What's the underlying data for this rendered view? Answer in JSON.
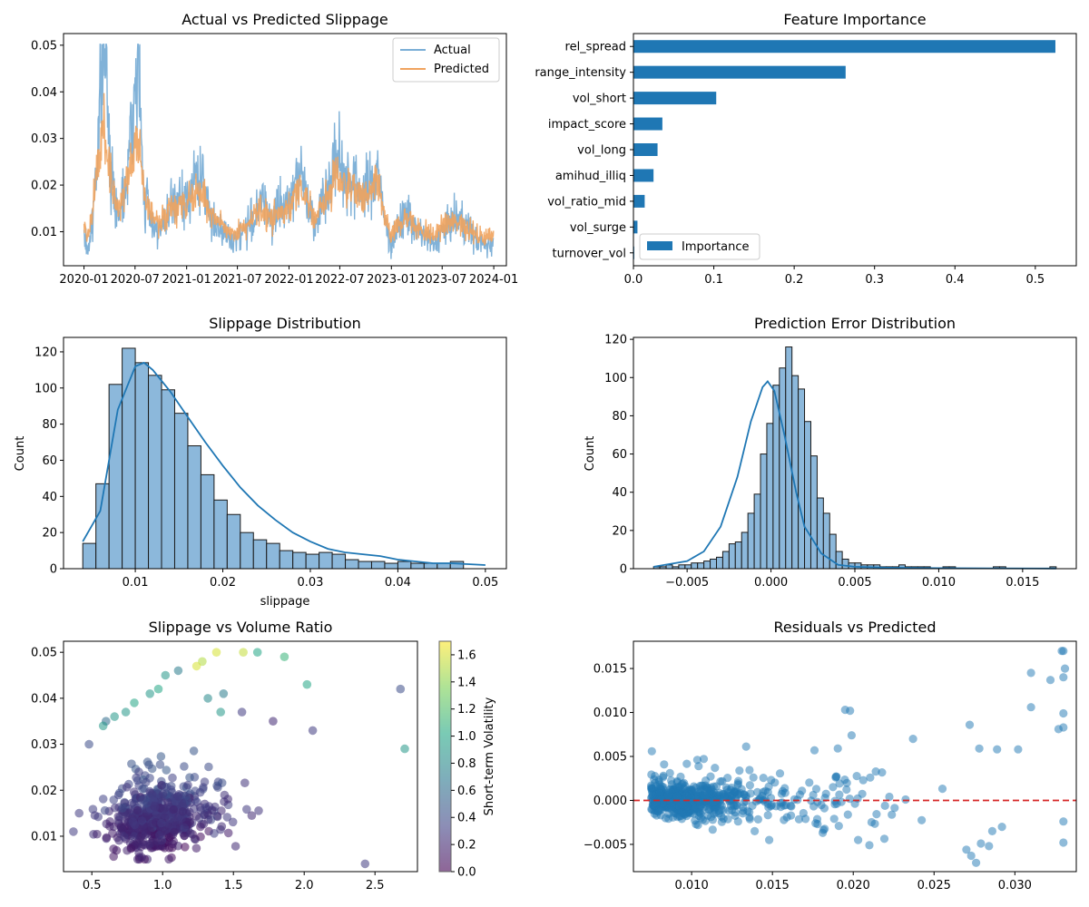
{
  "charts": {
    "c1": {
      "type": "line",
      "title": "Actual vs Predicted Slippage",
      "x_ticks": [
        "2020-01",
        "2020-07",
        "2021-01",
        "2021-07",
        "2022-01",
        "2022-07",
        "2023-01",
        "2023-07",
        "2024-01"
      ],
      "y_ticks": [
        "0.01",
        "0.02",
        "0.03",
        "0.04",
        "0.05"
      ],
      "ylim": [
        0.0027,
        0.0525
      ],
      "xlim": [
        "2019-10-20",
        "2024-02-15"
      ],
      "legend_position": "upper right",
      "series": [
        {
          "name": "Actual",
          "color": "#7aaed6"
        },
        {
          "name": "Predicted",
          "color": "#f0a35e"
        }
      ],
      "points_actual": [
        [
          "2020-01-01",
          0.009
        ],
        [
          "2020-01-15",
          0.006
        ],
        [
          "2020-02-01",
          0.012
        ],
        [
          "2020-02-15",
          0.026
        ],
        [
          "2020-03-01",
          0.044
        ],
        [
          "2020-03-10",
          0.05
        ],
        [
          "2020-03-15",
          0.05
        ],
        [
          "2020-03-20",
          0.043
        ],
        [
          "2020-04-01",
          0.029
        ],
        [
          "2020-04-15",
          0.018
        ],
        [
          "2020-05-01",
          0.014
        ],
        [
          "2020-05-15",
          0.017
        ],
        [
          "2020-06-01",
          0.022
        ],
        [
          "2020-06-15",
          0.03
        ],
        [
          "2020-07-01",
          0.038
        ],
        [
          "2020-07-10",
          0.05
        ],
        [
          "2020-07-20",
          0.034
        ],
        [
          "2020-08-01",
          0.018
        ],
        [
          "2020-08-15",
          0.016
        ],
        [
          "2020-09-01",
          0.012
        ],
        [
          "2020-10-01",
          0.01
        ],
        [
          "2020-11-01",
          0.014
        ],
        [
          "2020-12-01",
          0.017
        ],
        [
          "2021-01-01",
          0.016
        ],
        [
          "2021-02-01",
          0.022
        ],
        [
          "2021-03-01",
          0.02
        ],
        [
          "2021-04-01",
          0.013
        ],
        [
          "2021-05-01",
          0.011
        ],
        [
          "2021-06-01",
          0.008
        ],
        [
          "2021-07-01",
          0.009
        ],
        [
          "2021-08-01",
          0.011
        ],
        [
          "2021-09-01",
          0.013
        ],
        [
          "2021-10-01",
          0.017
        ],
        [
          "2021-11-01",
          0.013
        ],
        [
          "2021-12-01",
          0.015
        ],
        [
          "2022-01-01",
          0.016
        ],
        [
          "2022-02-01",
          0.024
        ],
        [
          "2022-03-01",
          0.019
        ],
        [
          "2022-04-01",
          0.012
        ],
        [
          "2022-05-01",
          0.017
        ],
        [
          "2022-06-01",
          0.021
        ],
        [
          "2022-06-15",
          0.027
        ],
        [
          "2022-07-01",
          0.024
        ],
        [
          "2022-08-01",
          0.022
        ],
        [
          "2022-09-01",
          0.02
        ],
        [
          "2022-10-01",
          0.018
        ],
        [
          "2022-11-01",
          0.021
        ],
        [
          "2022-11-15",
          0.025
        ],
        [
          "2022-12-01",
          0.014
        ],
        [
          "2023-01-01",
          0.007
        ],
        [
          "2023-02-01",
          0.012
        ],
        [
          "2023-03-01",
          0.014
        ],
        [
          "2023-04-01",
          0.01
        ],
        [
          "2023-05-01",
          0.009
        ],
        [
          "2023-06-01",
          0.007
        ],
        [
          "2023-07-01",
          0.01
        ],
        [
          "2023-08-01",
          0.012
        ],
        [
          "2023-09-01",
          0.013
        ],
        [
          "2023-10-01",
          0.011
        ],
        [
          "2023-11-01",
          0.008
        ],
        [
          "2023-12-01",
          0.007
        ],
        [
          "2024-01-01",
          0.008
        ]
      ],
      "points_predicted": [
        [
          "2020-01-01",
          0.011
        ],
        [
          "2020-01-15",
          0.009
        ],
        [
          "2020-02-01",
          0.014
        ],
        [
          "2020-02-15",
          0.022
        ],
        [
          "2020-03-01",
          0.03
        ],
        [
          "2020-03-10",
          0.032
        ],
        [
          "2020-03-15",
          0.031
        ],
        [
          "2020-03-20",
          0.029
        ],
        [
          "2020-04-01",
          0.024
        ],
        [
          "2020-04-15",
          0.017
        ],
        [
          "2020-05-01",
          0.015
        ],
        [
          "2020-05-15",
          0.016
        ],
        [
          "2020-06-01",
          0.02
        ],
        [
          "2020-06-15",
          0.024
        ],
        [
          "2020-07-01",
          0.028
        ],
        [
          "2020-07-10",
          0.03
        ],
        [
          "2020-07-20",
          0.026
        ],
        [
          "2020-08-01",
          0.018
        ],
        [
          "2020-08-15",
          0.016
        ],
        [
          "2020-09-01",
          0.013
        ],
        [
          "2020-10-01",
          0.012
        ],
        [
          "2020-11-01",
          0.014
        ],
        [
          "2020-12-01",
          0.016
        ],
        [
          "2021-01-01",
          0.015
        ],
        [
          "2021-02-01",
          0.019
        ],
        [
          "2021-03-01",
          0.018
        ],
        [
          "2021-04-01",
          0.013
        ],
        [
          "2021-05-01",
          0.012
        ],
        [
          "2021-06-01",
          0.01
        ],
        [
          "2021-07-01",
          0.01
        ],
        [
          "2021-08-01",
          0.011
        ],
        [
          "2021-09-01",
          0.013
        ],
        [
          "2021-10-01",
          0.015
        ],
        [
          "2021-11-01",
          0.013
        ],
        [
          "2021-12-01",
          0.014
        ],
        [
          "2022-01-01",
          0.015
        ],
        [
          "2022-02-01",
          0.02
        ],
        [
          "2022-03-01",
          0.017
        ],
        [
          "2022-04-01",
          0.013
        ],
        [
          "2022-05-01",
          0.016
        ],
        [
          "2022-06-01",
          0.019
        ],
        [
          "2022-06-15",
          0.022
        ],
        [
          "2022-07-01",
          0.021
        ],
        [
          "2022-08-01",
          0.02
        ],
        [
          "2022-09-01",
          0.018
        ],
        [
          "2022-10-01",
          0.017
        ],
        [
          "2022-11-01",
          0.019
        ],
        [
          "2022-11-15",
          0.021
        ],
        [
          "2022-12-01",
          0.014
        ],
        [
          "2023-01-01",
          0.009
        ],
        [
          "2023-02-01",
          0.012
        ],
        [
          "2023-03-01",
          0.013
        ],
        [
          "2023-04-01",
          0.011
        ],
        [
          "2023-05-01",
          0.01
        ],
        [
          "2023-06-01",
          0.009
        ],
        [
          "2023-07-01",
          0.011
        ],
        [
          "2023-08-01",
          0.012
        ],
        [
          "2023-09-01",
          0.012
        ],
        [
          "2023-10-01",
          0.011
        ],
        [
          "2023-11-01",
          0.009
        ],
        [
          "2023-12-01",
          0.009
        ],
        [
          "2024-01-01",
          0.009
        ]
      ]
    },
    "c2": {
      "type": "bar",
      "orientation": "horizontal",
      "title": "Feature Importance",
      "categories": [
        "rel_spread",
        "range_intensity",
        "vol_short",
        "impact_score",
        "vol_long",
        "amihud_illiq",
        "vol_ratio_mid",
        "vol_surge",
        "turnover_vol"
      ],
      "values": [
        0.525,
        0.264,
        0.103,
        0.036,
        0.03,
        0.025,
        0.014,
        0.005,
        0.001
      ],
      "series_name": "Importance",
      "color": "#1f77b4",
      "x_ticks": [
        "0.0",
        "0.1",
        "0.2",
        "0.3",
        "0.4",
        "0.5"
      ],
      "xlim": [
        0,
        0.551
      ],
      "legend_position": "lower left"
    },
    "c3": {
      "type": "bar",
      "subtype": "histogram",
      "title": "Slippage Distribution",
      "xlabel": "slippage",
      "ylabel": "Count",
      "bin_start": 0.004,
      "bin_width": 0.0015,
      "counts": [
        14,
        47,
        102,
        122,
        114,
        107,
        99,
        86,
        68,
        52,
        38,
        30,
        20,
        16,
        14,
        10,
        9,
        8,
        9,
        8,
        5,
        4,
        4,
        3,
        4,
        3,
        3,
        3,
        4
      ],
      "kde": [
        [
          0.004,
          15
        ],
        [
          0.006,
          32
        ],
        [
          0.008,
          88
        ],
        [
          0.01,
          112
        ],
        [
          0.011,
          114
        ],
        [
          0.012,
          110
        ],
        [
          0.014,
          98
        ],
        [
          0.016,
          84
        ],
        [
          0.018,
          70
        ],
        [
          0.02,
          57
        ],
        [
          0.022,
          45
        ],
        [
          0.024,
          35
        ],
        [
          0.026,
          27
        ],
        [
          0.028,
          20
        ],
        [
          0.03,
          15
        ],
        [
          0.032,
          11
        ],
        [
          0.034,
          9
        ],
        [
          0.036,
          8
        ],
        [
          0.038,
          7
        ],
        [
          0.04,
          5
        ],
        [
          0.042,
          4
        ],
        [
          0.044,
          3
        ],
        [
          0.046,
          3
        ],
        [
          0.048,
          2.5
        ],
        [
          0.05,
          2
        ]
      ],
      "x_ticks": [
        "0.01",
        "0.02",
        "0.03",
        "0.04",
        "0.05"
      ],
      "y_ticks": [
        "0",
        "20",
        "40",
        "60",
        "80",
        "100",
        "120"
      ],
      "xlim": [
        0.0018,
        0.0524
      ],
      "ylim": [
        0,
        128
      ]
    },
    "c4": {
      "type": "bar",
      "subtype": "histogram",
      "title": "Prediction Error Distribution",
      "ylabel": "Count",
      "bin_start": -0.007,
      "bin_width": 0.000375,
      "counts": [
        1,
        1,
        2,
        1,
        2,
        2,
        3,
        3,
        4,
        5,
        6,
        9,
        13,
        14,
        19,
        29,
        39,
        60,
        76,
        96,
        105,
        116,
        101,
        94,
        77,
        59,
        37,
        29,
        18,
        9,
        5,
        3,
        3,
        2,
        2,
        2,
        1,
        1,
        1,
        2,
        1,
        1,
        1,
        1,
        0,
        0,
        1,
        1,
        0,
        0,
        0,
        0,
        0,
        0,
        1,
        1,
        0,
        0,
        0,
        0,
        0,
        0,
        0,
        1
      ],
      "kde": [
        [
          -0.007,
          1
        ],
        [
          -0.005,
          4
        ],
        [
          -0.004,
          9
        ],
        [
          -0.003,
          22
        ],
        [
          -0.002,
          48
        ],
        [
          -0.0012,
          77
        ],
        [
          -0.0005,
          95
        ],
        [
          -0.0002,
          98
        ],
        [
          0.0002,
          93
        ],
        [
          0.0008,
          70
        ],
        [
          0.0015,
          40
        ],
        [
          0.002,
          22
        ],
        [
          0.003,
          8
        ],
        [
          0.004,
          2
        ],
        [
          0.005,
          1
        ],
        [
          0.007,
          0.5
        ],
        [
          0.01,
          0.3
        ],
        [
          0.013,
          0.2
        ],
        [
          0.017,
          0.1
        ]
      ],
      "x_ticks": [
        "−0.005",
        "0.000",
        "0.005",
        "0.010",
        "0.015"
      ],
      "y_ticks": [
        "0",
        "20",
        "40",
        "60",
        "80",
        "100",
        "120"
      ],
      "xlim": [
        -0.0082,
        0.0182
      ],
      "ylim": [
        0,
        121
      ]
    },
    "c5": {
      "type": "scatter",
      "title": "Slippage vs Volume Ratio",
      "x_ticks": [
        "0.5",
        "1.0",
        "1.5",
        "2.0",
        "2.5"
      ],
      "y_ticks": [
        "0.01",
        "0.02",
        "0.03",
        "0.04",
        "0.05"
      ],
      "xlim": [
        0.3,
        2.8
      ],
      "ylim": [
        0.0023,
        0.0524
      ],
      "colorbar_label": "Short-term Volatility",
      "colorbar_ticks": [
        "0.0",
        "0.2",
        "0.4",
        "0.6",
        "0.8",
        "1.0",
        "1.2",
        "1.4",
        "1.6"
      ],
      "colorbar_range": [
        0,
        1.7
      ],
      "highlights": [
        [
          1.38,
          0.05,
          1.6
        ],
        [
          1.57,
          0.05,
          1.55
        ],
        [
          1.67,
          0.05,
          1.0
        ],
        [
          1.28,
          0.048,
          1.5
        ],
        [
          1.24,
          0.047,
          1.6
        ],
        [
          1.02,
          0.045,
          0.9
        ],
        [
          1.11,
          0.046,
          0.7
        ],
        [
          1.86,
          0.049,
          1.1
        ],
        [
          2.02,
          0.043,
          1.0
        ],
        [
          2.68,
          0.042,
          0.4
        ],
        [
          2.71,
          0.029,
          0.9
        ],
        [
          0.97,
          0.042,
          1.0
        ],
        [
          0.91,
          0.041,
          0.9
        ],
        [
          0.8,
          0.039,
          1.0
        ],
        [
          0.74,
          0.037,
          0.9
        ],
        [
          0.66,
          0.036,
          0.9
        ],
        [
          0.6,
          0.035,
          0.6
        ],
        [
          0.58,
          0.034,
          0.9
        ],
        [
          1.43,
          0.041,
          0.7
        ],
        [
          1.56,
          0.037,
          0.3
        ],
        [
          1.78,
          0.035,
          0.2
        ],
        [
          2.06,
          0.033,
          0.3
        ],
        [
          2.43,
          0.004,
          0.3
        ],
        [
          1.32,
          0.04,
          0.8
        ],
        [
          1.41,
          0.037,
          0.9
        ],
        [
          0.48,
          0.03,
          0.4
        ],
        [
          0.41,
          0.015,
          0.3
        ],
        [
          0.37,
          0.011,
          0.3
        ]
      ]
    },
    "c6": {
      "type": "scatter",
      "title": "Residuals vs Predicted",
      "x_ticks": [
        "0.010",
        "0.015",
        "0.020",
        "0.025",
        "0.030"
      ],
      "y_ticks": [
        "−0.005",
        "0.000",
        "0.005",
        "0.010",
        "0.015"
      ],
      "xlim": [
        0.0064,
        0.0338
      ],
      "ylim": [
        -0.0081,
        0.0181
      ],
      "reference_line": 0,
      "highlights": [
        [
          0.0329,
          0.017
        ],
        [
          0.033,
          0.017
        ],
        [
          0.0331,
          0.015
        ],
        [
          0.033,
          0.014
        ],
        [
          0.0322,
          0.0137
        ],
        [
          0.031,
          0.0145
        ],
        [
          0.031,
          0.0106
        ],
        [
          0.033,
          0.0099
        ],
        [
          0.033,
          0.0083
        ],
        [
          0.0327,
          0.0081
        ],
        [
          0.0195,
          0.0103
        ],
        [
          0.0198,
          0.0102
        ],
        [
          0.0199,
          0.0074
        ],
        [
          0.0176,
          0.0057
        ],
        [
          0.0237,
          0.007
        ],
        [
          0.0289,
          0.0058
        ],
        [
          0.0302,
          0.0058
        ],
        [
          0.0278,
          0.0059
        ],
        [
          0.0272,
          0.0086
        ],
        [
          0.027,
          -0.0056
        ],
        [
          0.0273,
          -0.0063
        ],
        [
          0.0276,
          -0.0071
        ],
        [
          0.0279,
          -0.0049
        ],
        [
          0.0284,
          -0.0052
        ],
        [
          0.0286,
          -0.0035
        ],
        [
          0.0292,
          -0.003
        ],
        [
          0.0203,
          -0.0045
        ],
        [
          0.021,
          -0.0051
        ],
        [
          0.0148,
          -0.0045
        ],
        [
          0.0139,
          -0.0035
        ],
        [
          0.033,
          -0.0048
        ],
        [
          0.033,
          -0.0024
        ]
      ]
    }
  }
}
